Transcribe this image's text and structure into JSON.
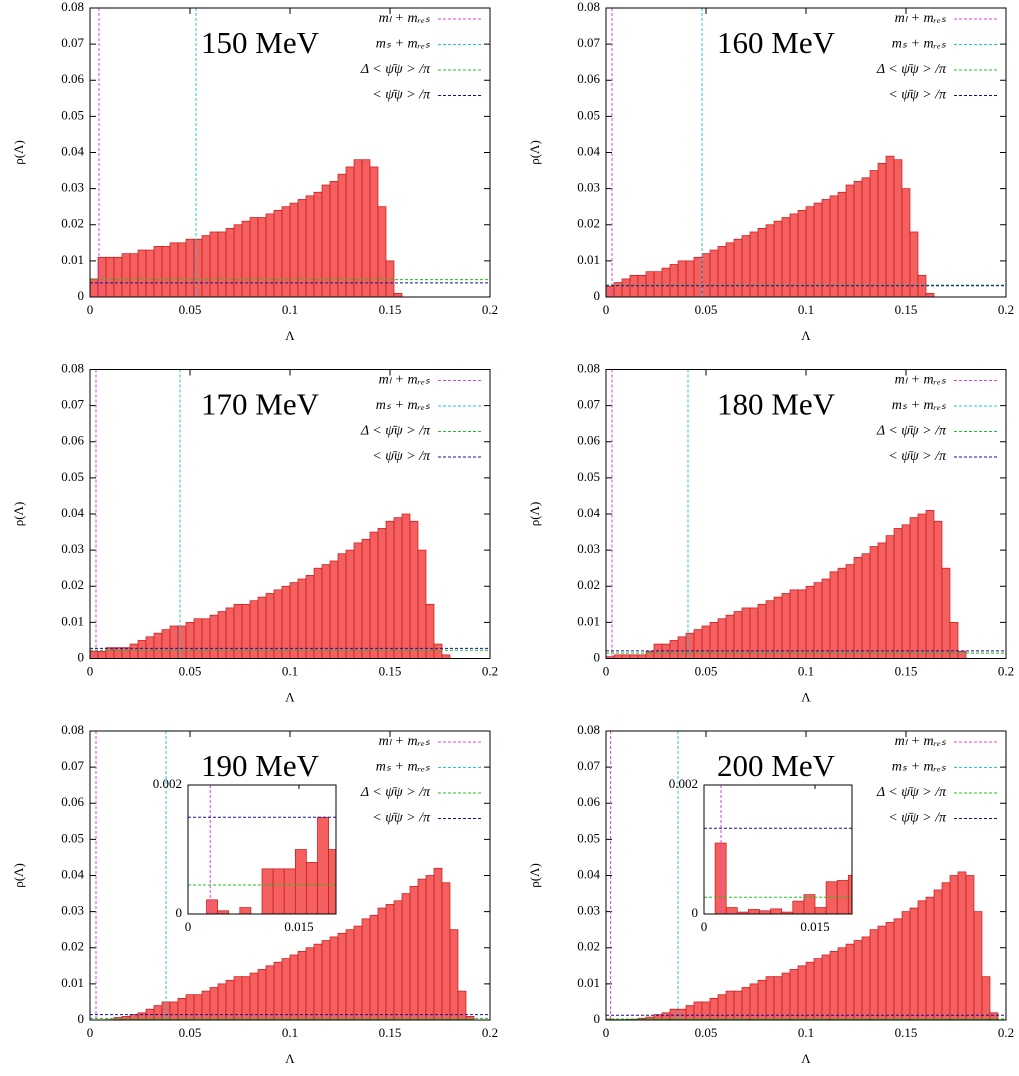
{
  "chart_data": [
    {
      "type": "histogram",
      "title": "150 MeV",
      "xlabel": "Λ",
      "ylabel": "ρ(Λ)",
      "color": "#f46060",
      "edgecolor": "#c81414",
      "xlim": [
        0,
        0.2
      ],
      "ylim": [
        0,
        0.08
      ],
      "xticks": [
        0,
        0.05,
        0.1,
        0.15,
        0.2
      ],
      "yticks": [
        0,
        0.01,
        0.02,
        0.03,
        0.04,
        0.05,
        0.06,
        0.07,
        0.08
      ],
      "bins": [
        0,
        0.004,
        0.008,
        0.012,
        0.016,
        0.02,
        0.024,
        0.028,
        0.032,
        0.036,
        0.04,
        0.044,
        0.048,
        0.052,
        0.056,
        0.06,
        0.064,
        0.068,
        0.072,
        0.076,
        0.08,
        0.084,
        0.088,
        0.092,
        0.096,
        0.1,
        0.104,
        0.108,
        0.112,
        0.116,
        0.12,
        0.124,
        0.128,
        0.132,
        0.136,
        0.14,
        0.144,
        0.148,
        0.152,
        0.156,
        0.16,
        0.164,
        0.168,
        0.172,
        0.176,
        0.18,
        0.184,
        0.188,
        0.192,
        0.196,
        0.2
      ],
      "counts": [
        0.005,
        0.011,
        0.011,
        0.011,
        0.012,
        0.012,
        0.013,
        0.013,
        0.014,
        0.014,
        0.015,
        0.015,
        0.016,
        0.016,
        0.017,
        0.018,
        0.018,
        0.019,
        0.02,
        0.021,
        0.022,
        0.022,
        0.023,
        0.024,
        0.025,
        0.026,
        0.027,
        0.028,
        0.029,
        0.031,
        0.032,
        0.034,
        0.036,
        0.038,
        0.038,
        0.036,
        0.025,
        0.01,
        0.001,
        0,
        0,
        0,
        0,
        0,
        0,
        0,
        0,
        0,
        0,
        0
      ],
      "lines": [
        {
          "name": "mₗ + mᵣₑₛ",
          "color": "#e040e0",
          "orientation": "vertical",
          "value": 0.0045
        },
        {
          "name": "mₛ + mᵣₑₛ",
          "color": "#20c8e0",
          "orientation": "vertical",
          "value": 0.053
        },
        {
          "name": "Δ < ψ̄ψ > /π",
          "color": "#20c020",
          "orientation": "horizontal",
          "value": 0.0048
        },
        {
          "name": "< ψ̄ψ > /π",
          "color": "#1010a0",
          "orientation": "horizontal",
          "value": 0.0039
        }
      ]
    },
    {
      "type": "histogram",
      "title": "160 MeV",
      "xlabel": "Λ",
      "ylabel": "ρ(Λ)",
      "color": "#f46060",
      "edgecolor": "#c81414",
      "xlim": [
        0,
        0.2
      ],
      "ylim": [
        0,
        0.08
      ],
      "xticks": [
        0,
        0.05,
        0.1,
        0.15,
        0.2
      ],
      "yticks": [
        0,
        0.01,
        0.02,
        0.03,
        0.04,
        0.05,
        0.06,
        0.07,
        0.08
      ],
      "bins": [
        0,
        0.004,
        0.008,
        0.012,
        0.016,
        0.02,
        0.024,
        0.028,
        0.032,
        0.036,
        0.04,
        0.044,
        0.048,
        0.052,
        0.056,
        0.06,
        0.064,
        0.068,
        0.072,
        0.076,
        0.08,
        0.084,
        0.088,
        0.092,
        0.096,
        0.1,
        0.104,
        0.108,
        0.112,
        0.116,
        0.12,
        0.124,
        0.128,
        0.132,
        0.136,
        0.14,
        0.144,
        0.148,
        0.152,
        0.156,
        0.16,
        0.164,
        0.168,
        0.172,
        0.176,
        0.18,
        0.184,
        0.188,
        0.192,
        0.196,
        0.2
      ],
      "counts": [
        0.003,
        0.004,
        0.005,
        0.006,
        0.006,
        0.007,
        0.007,
        0.008,
        0.009,
        0.01,
        0.01,
        0.011,
        0.012,
        0.013,
        0.014,
        0.015,
        0.016,
        0.017,
        0.018,
        0.019,
        0.02,
        0.021,
        0.022,
        0.023,
        0.024,
        0.025,
        0.026,
        0.027,
        0.028,
        0.029,
        0.031,
        0.032,
        0.033,
        0.035,
        0.037,
        0.039,
        0.038,
        0.03,
        0.018,
        0.006,
        0.001,
        0,
        0,
        0,
        0,
        0,
        0,
        0,
        0,
        0
      ],
      "lines": [
        {
          "name": "mₗ + mᵣₑₛ",
          "color": "#e040e0",
          "orientation": "vertical",
          "value": 0.003
        },
        {
          "name": "mₛ + mᵣₑₛ",
          "color": "#20c8e0",
          "orientation": "vertical",
          "value": 0.048
        },
        {
          "name": "Δ < ψ̄ψ > /π",
          "color": "#20c020",
          "orientation": "horizontal",
          "value": 0.0033
        },
        {
          "name": "< ψ̄ψ > /π",
          "color": "#1010a0",
          "orientation": "horizontal",
          "value": 0.0031
        }
      ]
    },
    {
      "type": "histogram",
      "title": "170 MeV",
      "xlabel": "Λ",
      "ylabel": "ρ(Λ)",
      "color": "#f46060",
      "edgecolor": "#c81414",
      "xlim": [
        0,
        0.2
      ],
      "ylim": [
        0,
        0.08
      ],
      "xticks": [
        0,
        0.05,
        0.1,
        0.15,
        0.2
      ],
      "yticks": [
        0,
        0.01,
        0.02,
        0.03,
        0.04,
        0.05,
        0.06,
        0.07,
        0.08
      ],
      "bins": [
        0,
        0.004,
        0.008,
        0.012,
        0.016,
        0.02,
        0.024,
        0.028,
        0.032,
        0.036,
        0.04,
        0.044,
        0.048,
        0.052,
        0.056,
        0.06,
        0.064,
        0.068,
        0.072,
        0.076,
        0.08,
        0.084,
        0.088,
        0.092,
        0.096,
        0.1,
        0.104,
        0.108,
        0.112,
        0.116,
        0.12,
        0.124,
        0.128,
        0.132,
        0.136,
        0.14,
        0.144,
        0.148,
        0.152,
        0.156,
        0.16,
        0.164,
        0.168,
        0.172,
        0.176,
        0.18,
        0.184,
        0.188,
        0.192,
        0.196,
        0.2
      ],
      "counts": [
        0.002,
        0.002,
        0.003,
        0.003,
        0.003,
        0.004,
        0.005,
        0.006,
        0.007,
        0.008,
        0.009,
        0.009,
        0.01,
        0.011,
        0.011,
        0.012,
        0.013,
        0.014,
        0.015,
        0.015,
        0.016,
        0.017,
        0.018,
        0.019,
        0.02,
        0.021,
        0.022,
        0.023,
        0.025,
        0.026,
        0.027,
        0.029,
        0.03,
        0.032,
        0.033,
        0.035,
        0.036,
        0.038,
        0.039,
        0.04,
        0.038,
        0.03,
        0.015,
        0.004,
        0.001,
        0,
        0,
        0,
        0,
        0
      ],
      "lines": [
        {
          "name": "mₗ + mᵣₑₛ",
          "color": "#e040e0",
          "orientation": "vertical",
          "value": 0.003
        },
        {
          "name": "mₛ + mᵣₑₛ",
          "color": "#20c8e0",
          "orientation": "vertical",
          "value": 0.045
        },
        {
          "name": "Δ < ψ̄ψ > /π",
          "color": "#20c020",
          "orientation": "horizontal",
          "value": 0.0023
        },
        {
          "name": "< ψ̄ψ > /π",
          "color": "#1010a0",
          "orientation": "horizontal",
          "value": 0.0028
        }
      ]
    },
    {
      "type": "histogram",
      "title": "180 MeV",
      "xlabel": "Λ",
      "ylabel": "ρ(Λ)",
      "color": "#f46060",
      "edgecolor": "#c81414",
      "xlim": [
        0,
        0.2
      ],
      "ylim": [
        0,
        0.08
      ],
      "xticks": [
        0,
        0.05,
        0.1,
        0.15,
        0.2
      ],
      "yticks": [
        0,
        0.01,
        0.02,
        0.03,
        0.04,
        0.05,
        0.06,
        0.07,
        0.08
      ],
      "bins": [
        0,
        0.004,
        0.008,
        0.012,
        0.016,
        0.02,
        0.024,
        0.028,
        0.032,
        0.036,
        0.04,
        0.044,
        0.048,
        0.052,
        0.056,
        0.06,
        0.064,
        0.068,
        0.072,
        0.076,
        0.08,
        0.084,
        0.088,
        0.092,
        0.096,
        0.1,
        0.104,
        0.108,
        0.112,
        0.116,
        0.12,
        0.124,
        0.128,
        0.132,
        0.136,
        0.14,
        0.144,
        0.148,
        0.152,
        0.156,
        0.16,
        0.164,
        0.168,
        0.172,
        0.176,
        0.18,
        0.184,
        0.188,
        0.192,
        0.196,
        0.2
      ],
      "counts": [
        0.0005,
        0.001,
        0.001,
        0.001,
        0.001,
        0.002,
        0.004,
        0.004,
        0.005,
        0.006,
        0.007,
        0.008,
        0.009,
        0.01,
        0.011,
        0.012,
        0.013,
        0.014,
        0.014,
        0.015,
        0.016,
        0.017,
        0.018,
        0.019,
        0.019,
        0.02,
        0.021,
        0.022,
        0.024,
        0.025,
        0.026,
        0.028,
        0.029,
        0.031,
        0.032,
        0.034,
        0.036,
        0.037,
        0.039,
        0.04,
        0.041,
        0.038,
        0.025,
        0.01,
        0.002,
        0,
        0,
        0,
        0,
        0
      ],
      "lines": [
        {
          "name": "mₗ + mᵣₑₛ",
          "color": "#e040e0",
          "orientation": "vertical",
          "value": 0.003
        },
        {
          "name": "mₛ + mᵣₑₛ",
          "color": "#20c8e0",
          "orientation": "vertical",
          "value": 0.041
        },
        {
          "name": "Δ < ψ̄ψ > /π",
          "color": "#20c020",
          "orientation": "horizontal",
          "value": 0.0015
        },
        {
          "name": "< ψ̄ψ > /π",
          "color": "#1010a0",
          "orientation": "horizontal",
          "value": 0.0021
        }
      ]
    },
    {
      "type": "histogram",
      "title": "190 MeV",
      "xlabel": "Λ",
      "ylabel": "ρ(Λ)",
      "color": "#f46060",
      "edgecolor": "#c81414",
      "xlim": [
        0,
        0.2
      ],
      "ylim": [
        0,
        0.08
      ],
      "xticks": [
        0,
        0.05,
        0.1,
        0.15,
        0.2
      ],
      "yticks": [
        0,
        0.01,
        0.02,
        0.03,
        0.04,
        0.05,
        0.06,
        0.07,
        0.08
      ],
      "bins": [
        0,
        0.004,
        0.008,
        0.012,
        0.016,
        0.02,
        0.024,
        0.028,
        0.032,
        0.036,
        0.04,
        0.044,
        0.048,
        0.052,
        0.056,
        0.06,
        0.064,
        0.068,
        0.072,
        0.076,
        0.08,
        0.084,
        0.088,
        0.092,
        0.096,
        0.1,
        0.104,
        0.108,
        0.112,
        0.116,
        0.12,
        0.124,
        0.128,
        0.132,
        0.136,
        0.14,
        0.144,
        0.148,
        0.152,
        0.156,
        0.16,
        0.164,
        0.168,
        0.172,
        0.176,
        0.18,
        0.184,
        0.188,
        0.192,
        0.196,
        0.2
      ],
      "counts": [
        0,
        5e-05,
        0.0001,
        0.0007,
        0.001,
        0.0015,
        0.002,
        0.003,
        0.004,
        0.005,
        0.005,
        0.006,
        0.007,
        0.007,
        0.008,
        0.009,
        0.01,
        0.011,
        0.012,
        0.012,
        0.013,
        0.014,
        0.015,
        0.016,
        0.017,
        0.018,
        0.019,
        0.02,
        0.021,
        0.022,
        0.023,
        0.024,
        0.025,
        0.026,
        0.028,
        0.029,
        0.031,
        0.032,
        0.033,
        0.035,
        0.037,
        0.039,
        0.04,
        0.042,
        0.038,
        0.025,
        0.008,
        0.001,
        0,
        0
      ],
      "lines": [
        {
          "name": "mₗ + mᵣₑₛ",
          "color": "#e040e0",
          "orientation": "vertical",
          "value": 0.003
        },
        {
          "name": "mₛ + mᵣₑₛ",
          "color": "#20c8e0",
          "orientation": "vertical",
          "value": 0.038
        },
        {
          "name": "Δ < ψ̄ψ > /π",
          "color": "#20c020",
          "orientation": "horizontal",
          "value": 0.00045
        },
        {
          "name": "< ψ̄ψ > /π",
          "color": "#1010a0",
          "orientation": "horizontal",
          "value": 0.0015
        }
      ],
      "inset": {
        "xlim": [
          0,
          0.02
        ],
        "ylim": [
          0,
          0.002
        ],
        "xticks": [
          0,
          0.015
        ],
        "yticks": [
          0,
          0.002
        ],
        "bins": [
          0.001,
          0.0025,
          0.004,
          0.0055,
          0.007,
          0.0085,
          0.01,
          0.0115,
          0.013,
          0.0145,
          0.016,
          0.0175,
          0.019,
          0.02
        ],
        "counts": [
          0,
          0.00022,
          5e-05,
          0,
          0.0001,
          0,
          0.0007,
          0.0007,
          0.0007,
          0.001,
          0.0008,
          0.0015,
          0.001
        ]
      }
    },
    {
      "type": "histogram",
      "title": "200 MeV",
      "xlabel": "Λ",
      "ylabel": "ρ(Λ)",
      "color": "#f46060",
      "edgecolor": "#c81414",
      "xlim": [
        0,
        0.2
      ],
      "ylim": [
        0,
        0.08
      ],
      "xticks": [
        0,
        0.05,
        0.1,
        0.15,
        0.2
      ],
      "yticks": [
        0,
        0.01,
        0.02,
        0.03,
        0.04,
        0.05,
        0.06,
        0.07,
        0.08
      ],
      "bins": [
        0,
        0.004,
        0.008,
        0.012,
        0.016,
        0.02,
        0.024,
        0.028,
        0.032,
        0.036,
        0.04,
        0.044,
        0.048,
        0.052,
        0.056,
        0.06,
        0.064,
        0.068,
        0.072,
        0.076,
        0.08,
        0.084,
        0.088,
        0.092,
        0.096,
        0.1,
        0.104,
        0.108,
        0.112,
        0.116,
        0.12,
        0.124,
        0.128,
        0.132,
        0.136,
        0.14,
        0.144,
        0.148,
        0.152,
        0.156,
        0.16,
        0.164,
        0.168,
        0.172,
        0.176,
        0.18,
        0.184,
        0.188,
        0.192,
        0.196,
        0.2
      ],
      "counts": [
        0.0003,
        0.0001,
        0.0001,
        0.0002,
        0.0005,
        0.0008,
        0.0015,
        0.002,
        0.003,
        0.003,
        0.004,
        0.005,
        0.005,
        0.006,
        0.007,
        0.008,
        0.008,
        0.009,
        0.01,
        0.011,
        0.012,
        0.012,
        0.013,
        0.014,
        0.015,
        0.016,
        0.017,
        0.018,
        0.019,
        0.02,
        0.021,
        0.022,
        0.023,
        0.025,
        0.026,
        0.027,
        0.028,
        0.03,
        0.031,
        0.033,
        0.034,
        0.036,
        0.038,
        0.04,
        0.041,
        0.04,
        0.03,
        0.012,
        0.002,
        0
      ],
      "lines": [
        {
          "name": "mₗ + mᵣₑₛ",
          "color": "#e040e0",
          "orientation": "vertical",
          "value": 0.0023
        },
        {
          "name": "mₛ + mᵣₑₛ",
          "color": "#20c8e0",
          "orientation": "vertical",
          "value": 0.036
        },
        {
          "name": "Δ < ψ̄ψ > /π",
          "color": "#20c020",
          "orientation": "horizontal",
          "value": 0.00026
        },
        {
          "name": "< ψ̄ψ > /π",
          "color": "#1010a0",
          "orientation": "horizontal",
          "value": 0.00133
        }
      ],
      "inset": {
        "xlim": [
          0,
          0.02
        ],
        "ylim": [
          0,
          0.002
        ],
        "xticks": [
          0,
          0.015
        ],
        "yticks": [
          0,
          0.002
        ],
        "bins": [
          0.0015,
          0.003,
          0.0045,
          0.006,
          0.0075,
          0.009,
          0.0105,
          0.012,
          0.0135,
          0.015,
          0.0165,
          0.018,
          0.0195,
          0.02
        ],
        "counts": [
          0.0011,
          0.0001,
          3e-05,
          7e-05,
          5e-05,
          8e-05,
          3e-05,
          0.0002,
          0.0003,
          0.0001,
          0.0005,
          0.00052,
          0.0006
        ]
      }
    }
  ]
}
